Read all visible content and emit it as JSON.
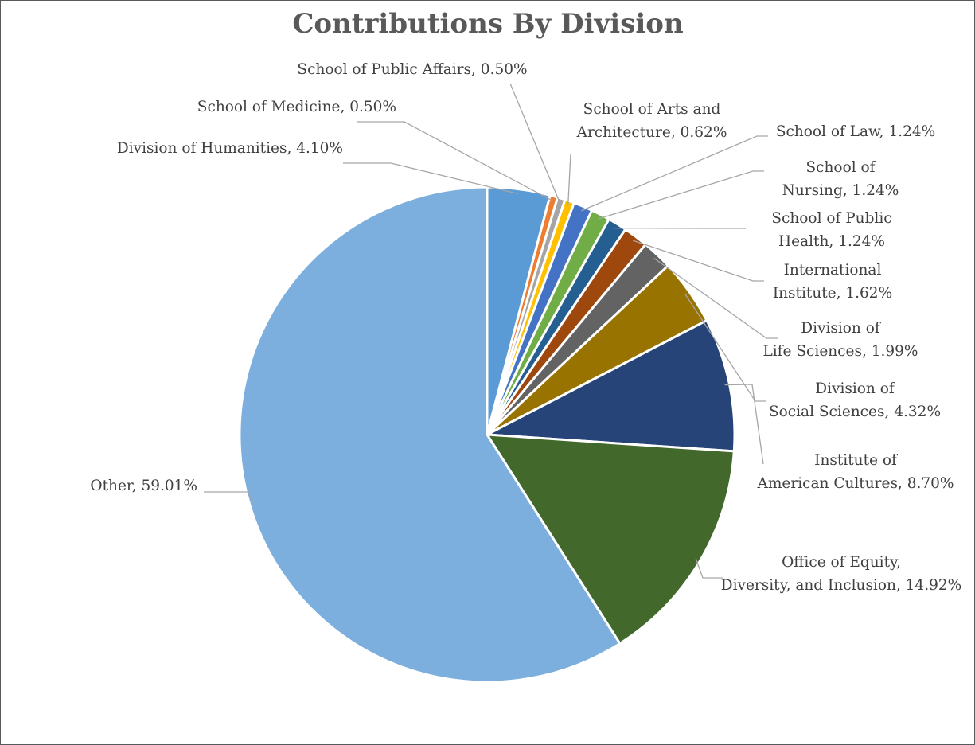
{
  "chart_data": {
    "type": "pie",
    "title": "Contributions By Division",
    "slices": [
      {
        "name": "Division of Humanities",
        "value": 4.1,
        "label_text": "Division of Humanities, 4.10%",
        "color": "#5b9bd5"
      },
      {
        "name": "School of Medicine",
        "value": 0.5,
        "label_text": "School of Medicine, 0.50%",
        "color": "#ed7d31"
      },
      {
        "name": "School of Public Affairs",
        "value": 0.5,
        "label_text": "School of Public Affairs, 0.50%",
        "color": "#a5a5a5"
      },
      {
        "name": "School of Arts and Architecture",
        "value": 0.62,
        "label_text": "School of Arts and Architecture, 0.62%",
        "color": "#ffc000"
      },
      {
        "name": "School of Law",
        "value": 1.24,
        "label_text": "School of Law, 1.24%",
        "color": "#4472c4"
      },
      {
        "name": "School of Nursing",
        "value": 1.24,
        "label_text": "School of Nursing, 1.24%",
        "color": "#70ad47"
      },
      {
        "name": "School of Public Health",
        "value": 1.24,
        "label_text": "School of Public Health, 1.24%",
        "color": "#255e91"
      },
      {
        "name": "International Institute",
        "value": 1.62,
        "label_text": "International Institute, 1.62%",
        "color": "#9e480e"
      },
      {
        "name": "Division of Life Sciences",
        "value": 1.99,
        "label_text": "Division of Life Sciences, 1.99%",
        "color": "#636363"
      },
      {
        "name": "Division of Social Sciences",
        "value": 4.32,
        "label_text": "Division of Social Sciences, 4.32%",
        "color": "#997300"
      },
      {
        "name": "Institute of American Cultures",
        "value": 8.7,
        "label_text": "Institute of American Cultures, 8.70%",
        "color": "#264478"
      },
      {
        "name": "Office of Equity, Diversity, and Inclusion",
        "value": 14.92,
        "label_text": "Office of Equity, Diversity, and Inclusion, 14.92%",
        "color": "#43682b"
      },
      {
        "name": "Other",
        "value": 59.01,
        "label_text": "Other, 59.01%",
        "color": "#7cafdd"
      }
    ]
  }
}
